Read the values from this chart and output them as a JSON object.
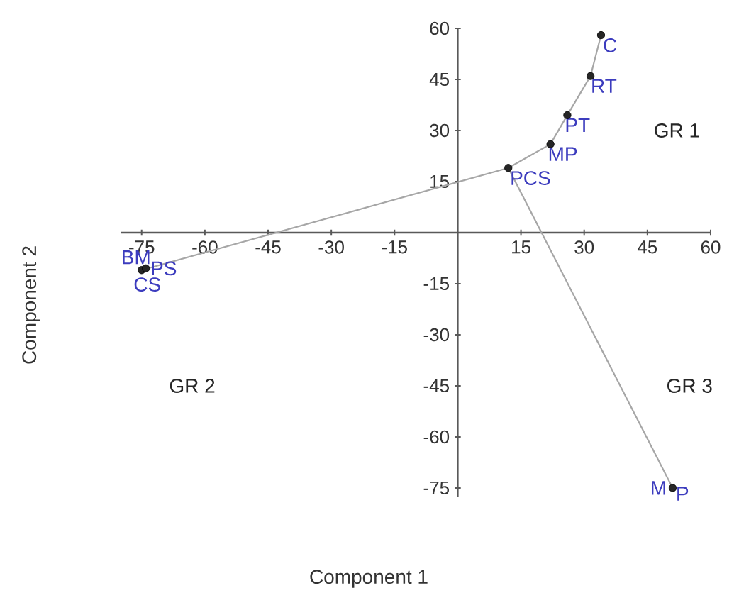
{
  "chart_data": {
    "type": "scatter",
    "xlabel": "Component 1",
    "ylabel": "Component 2",
    "xlim": [
      -80,
      60
    ],
    "ylim": [
      -77.5,
      60
    ],
    "xticks": [
      -75,
      -60,
      -45,
      -30,
      -15,
      15,
      30,
      45,
      60
    ],
    "yticks": [
      -75,
      -60,
      -45,
      -30,
      -15,
      15,
      30,
      45,
      60
    ],
    "series": [
      {
        "type": "line",
        "color": "#a6a6a6",
        "marker": "none",
        "x": [
          -75,
          12,
          22,
          26,
          31.5,
          34
        ],
        "values": [
          -11,
          19,
          26,
          34.5,
          46,
          58
        ]
      },
      {
        "type": "line",
        "color": "#a6a6a6",
        "marker": "none",
        "x": [
          12,
          51
        ],
        "values": [
          19,
          -75
        ]
      },
      {
        "color": "#000000",
        "marker": "circle",
        "x": [
          -75,
          -74,
          12,
          22,
          26,
          31.5,
          34,
          51
        ],
        "values": [
          -11,
          -10.5,
          19,
          26,
          34.5,
          46,
          58,
          -75
        ]
      }
    ],
    "annotations": [
      {
        "text": "BM",
        "x": -75,
        "y": -11
      },
      {
        "text": "PS",
        "x": -74,
        "y": -10.5
      },
      {
        "text": "CS",
        "x": -75,
        "y": -11
      },
      {
        "text": "PCS",
        "x": 12,
        "y": 19
      },
      {
        "text": "MP",
        "x": 22,
        "y": 26
      },
      {
        "text": "PT",
        "x": 26,
        "y": 34.5
      },
      {
        "text": "RT",
        "x": 31.5,
        "y": 46
      },
      {
        "text": "C",
        "x": 34,
        "y": 58
      },
      {
        "text": "M",
        "x": 51,
        "y": -75
      },
      {
        "text": "P",
        "x": 51,
        "y": -75
      },
      "GR 1",
      "GR 2",
      "GR 3"
    ]
  }
}
